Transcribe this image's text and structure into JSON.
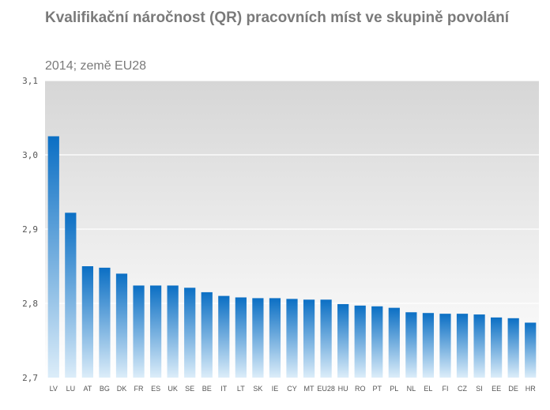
{
  "chart_data": {
    "type": "bar",
    "title": "Kvalifikační náročnost (QR) pracovních míst ve skupině povolání",
    "subtitle": "2014; země EU28",
    "xlabel": "",
    "ylabel": "",
    "ylim": [
      2.7,
      3.1
    ],
    "yticks": [
      {
        "value": 2.7,
        "label": "2,7"
      },
      {
        "value": 2.8,
        "label": "2,8"
      },
      {
        "value": 2.9,
        "label": "2,9"
      },
      {
        "value": 3.0,
        "label": "3,0"
      },
      {
        "value": 3.1,
        "label": "3,1"
      }
    ],
    "grid": true,
    "legend": "none",
    "colors": {
      "bar_top": "#0b6fc4",
      "bar_bottom": "#dcedf9",
      "plot_bg_top": "#d6d6d6",
      "plot_bg_bottom": "#ffffff",
      "gridline": "#ffffff",
      "text": "#7a7a7a"
    },
    "categories": [
      "LV",
      "LU",
      "AT",
      "BG",
      "DK",
      "FR",
      "ES",
      "UK",
      "SE",
      "BE",
      "IT",
      "LT",
      "SK",
      "IE",
      "CY",
      "MT",
      "EU28",
      "HU",
      "RO",
      "PT",
      "PL",
      "NL",
      "EL",
      "FI",
      "CZ",
      "SI",
      "EE",
      "DE",
      "HR"
    ],
    "values": [
      3.025,
      2.922,
      2.85,
      2.848,
      2.84,
      2.824,
      2.824,
      2.824,
      2.821,
      2.815,
      2.81,
      2.808,
      2.807,
      2.807,
      2.806,
      2.805,
      2.805,
      2.799,
      2.797,
      2.796,
      2.794,
      2.788,
      2.787,
      2.786,
      2.786,
      2.785,
      2.781,
      2.78,
      2.774
    ]
  }
}
